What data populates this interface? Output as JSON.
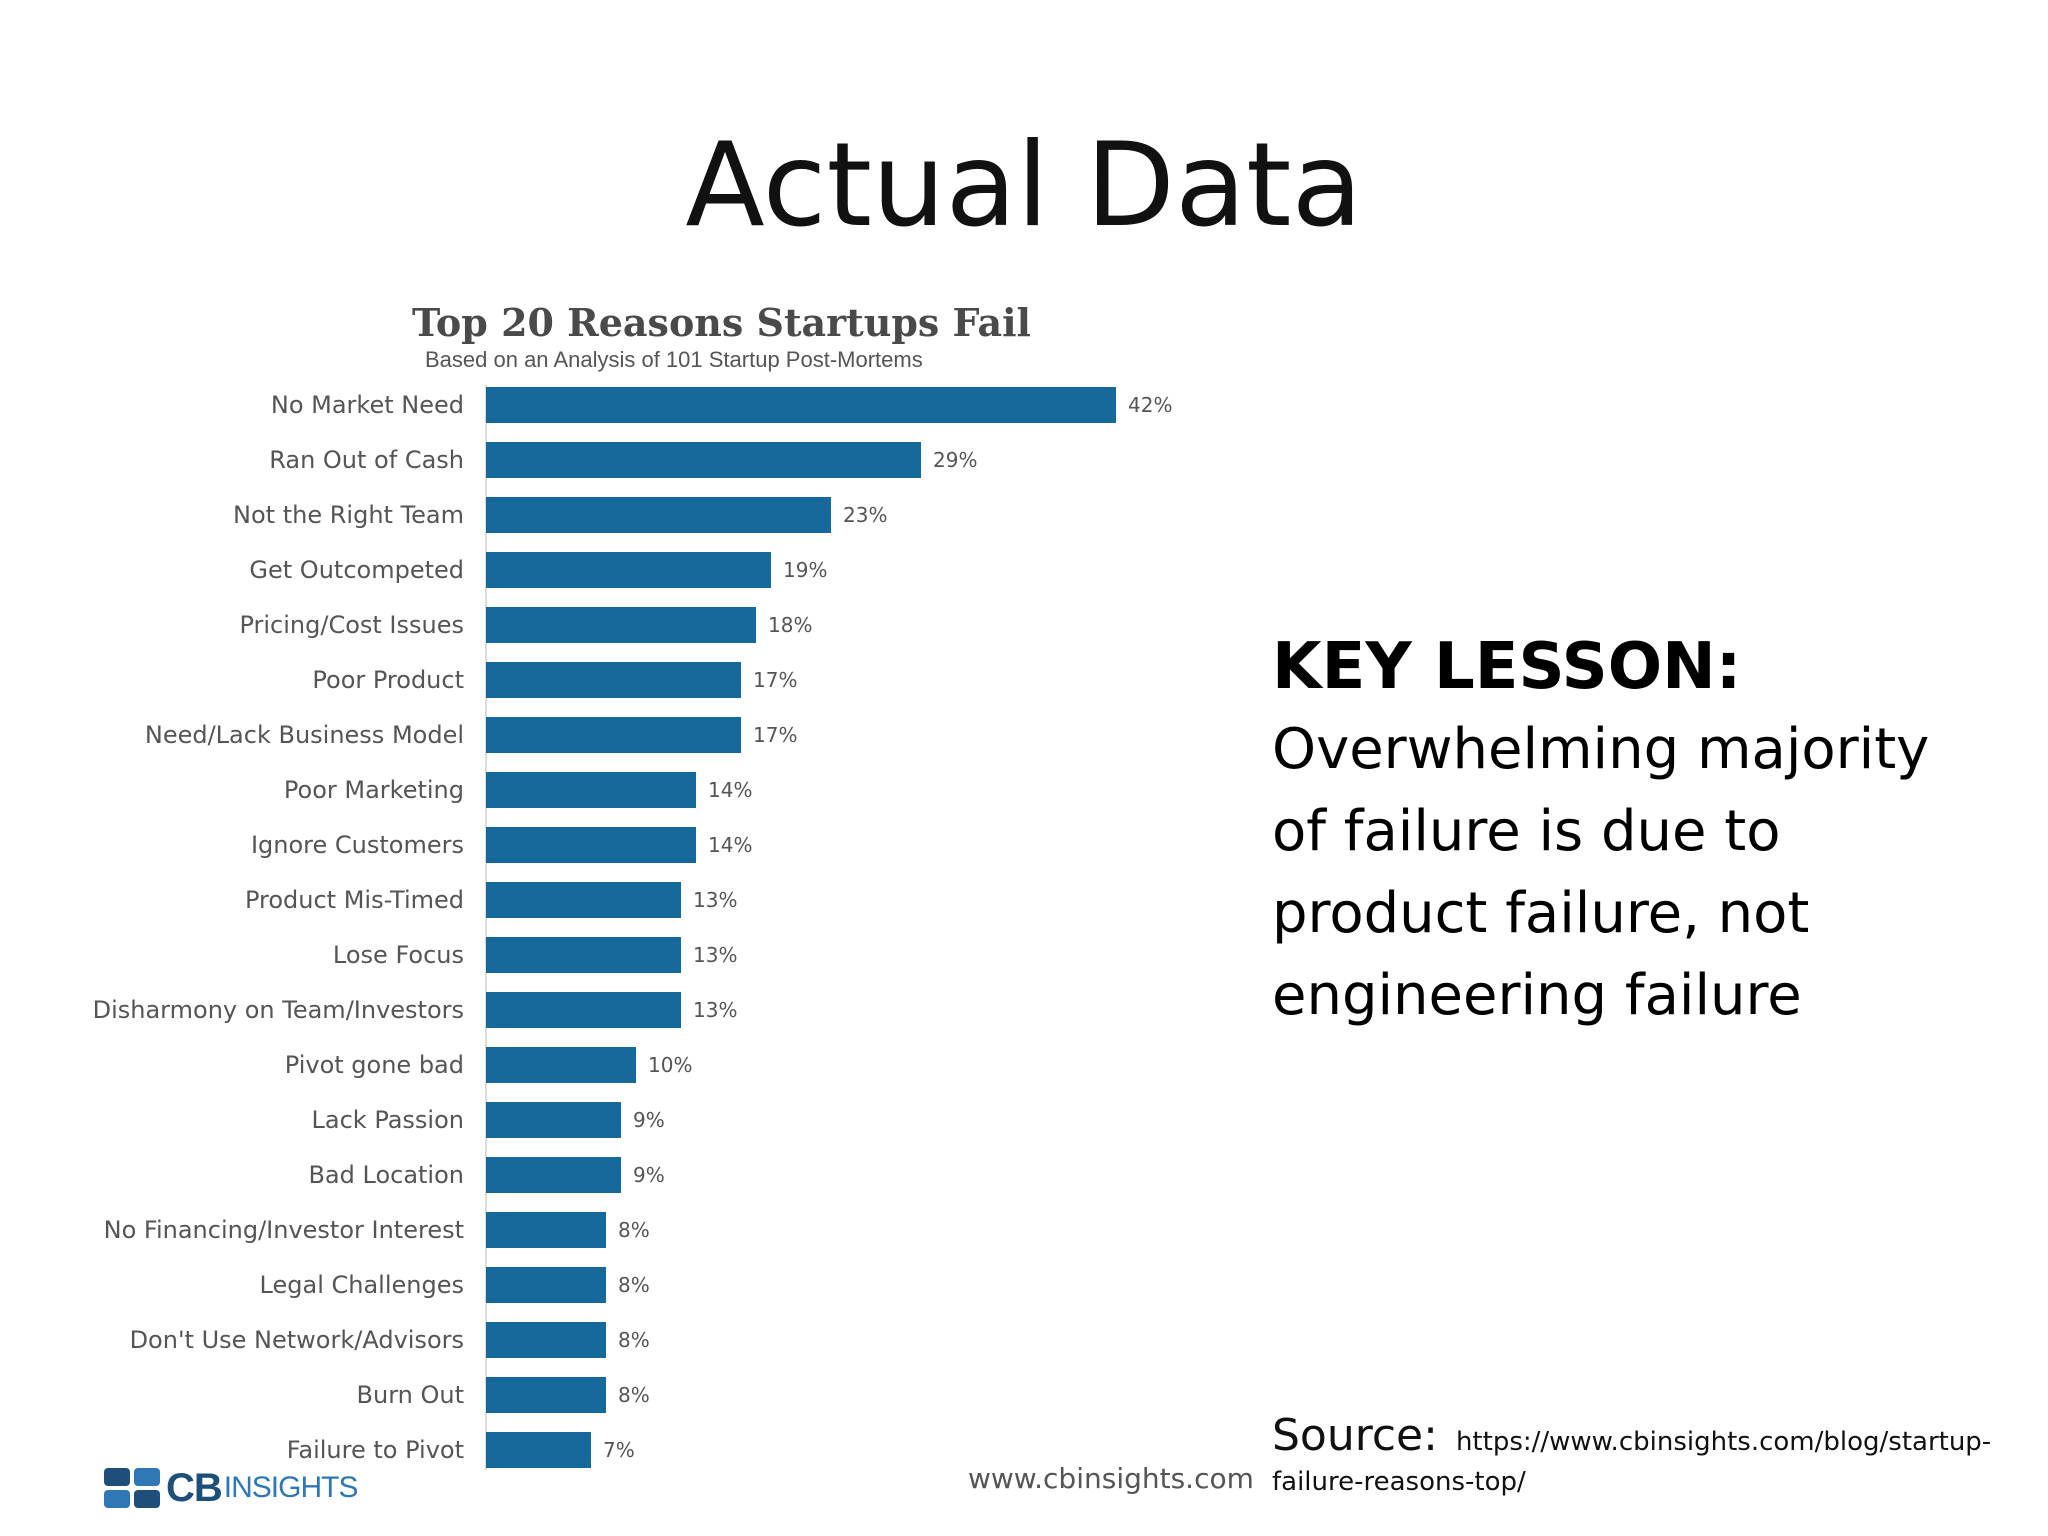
{
  "slide": {
    "title": "Actual Data",
    "lesson_heading": "KEY LESSON:",
    "lesson_body": "Overwhelming majority of failure is due to product failure, not engineering failure",
    "source_label": "Source:",
    "source_url": "https://www.cbinsights.com/blog/startup-failure-reasons-top/"
  },
  "footer": {
    "logo_cb": "CB",
    "logo_insights": "INSIGHTS",
    "website": "www.cbinsights.com",
    "brand_color": "#17699c"
  },
  "chart_data": {
    "type": "bar",
    "orientation": "horizontal",
    "title": "Top 20 Reasons Startups Fail",
    "subtitle": "Based on an Analysis of 101 Startup Post-Mortems",
    "categories": [
      "No Market Need",
      "Ran Out of Cash",
      "Not the Right Team",
      "Get Outcompeted",
      "Pricing/Cost Issues",
      "Poor Product",
      "Need/Lack Business Model",
      "Poor Marketing",
      "Ignore Customers",
      "Product Mis-Timed",
      "Lose Focus",
      "Disharmony on Team/Investors",
      "Pivot gone bad",
      "Lack Passion",
      "Bad Location",
      "No Financing/Investor Interest",
      "Legal Challenges",
      "Don't Use Network/Advisors",
      "Burn Out",
      "Failure to Pivot"
    ],
    "values": [
      42,
      29,
      23,
      19,
      18,
      17,
      17,
      14,
      14,
      13,
      13,
      13,
      10,
      9,
      9,
      8,
      8,
      8,
      8,
      7
    ],
    "value_labels": [
      "42%",
      "29%",
      "23%",
      "19%",
      "18%",
      "17%",
      "17%",
      "14%",
      "14%",
      "13%",
      "13%",
      "13%",
      "10%",
      "9%",
      "9%",
      "8%",
      "8%",
      "8%",
      "8%",
      "7%"
    ],
    "unit": "%",
    "bar_color": "#17699c",
    "grid": false,
    "legend": "none"
  }
}
